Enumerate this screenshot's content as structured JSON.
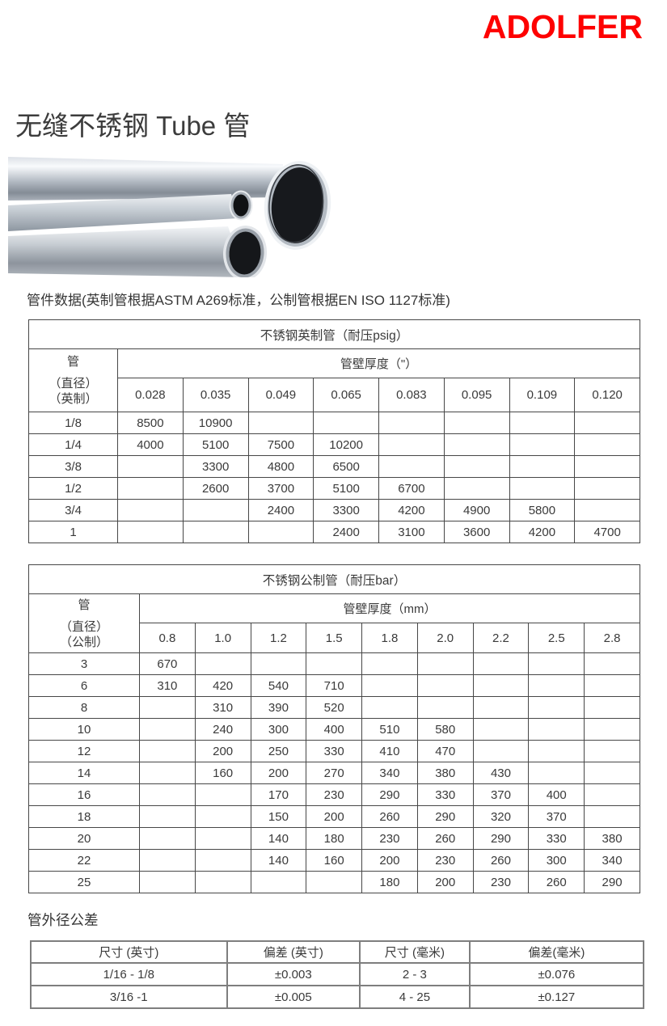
{
  "brand": {
    "logo_text": "ADOLFER",
    "logo_color": "#fe0000"
  },
  "page": {
    "title": "无缝不锈钢 Tube 管",
    "intro": "管件数据(英制管根据ASTM A269标准，公制管根据EN ISO 1127标准)",
    "photo_alt": "stainless-steel-tubes-photo"
  },
  "imperial_table": {
    "title": "不锈钢英制管（耐压psig）",
    "corner_lines": [
      "管",
      "（直径）",
      "（英制）"
    ],
    "thickness_header": "管壁厚度（\"）",
    "thicknesses": [
      "0.028",
      "0.035",
      "0.049",
      "0.065",
      "0.083",
      "0.095",
      "0.109",
      "0.120"
    ],
    "rows": [
      {
        "size": "1/8",
        "values": [
          "8500",
          "10900",
          "",
          "",
          "",
          "",
          "",
          ""
        ]
      },
      {
        "size": "1/4",
        "values": [
          "4000",
          "5100",
          "7500",
          "10200",
          "",
          "",
          "",
          ""
        ]
      },
      {
        "size": "3/8",
        "values": [
          "",
          "3300",
          "4800",
          "6500",
          "",
          "",
          "",
          ""
        ]
      },
      {
        "size": "1/2",
        "values": [
          "",
          "2600",
          "3700",
          "5100",
          "6700",
          "",
          "",
          ""
        ]
      },
      {
        "size": "3/4",
        "values": [
          "",
          "",
          "2400",
          "3300",
          "4200",
          "4900",
          "5800",
          ""
        ]
      },
      {
        "size": "1",
        "values": [
          "",
          "",
          "",
          "2400",
          "3100",
          "3600",
          "4200",
          "4700"
        ]
      }
    ]
  },
  "metric_table": {
    "title": "不锈钢公制管（耐压bar）",
    "corner_lines": [
      "管",
      "（直径）",
      "（公制）"
    ],
    "thickness_header": "管壁厚度（mm）",
    "thicknesses": [
      "0.8",
      "1.0",
      "1.2",
      "1.5",
      "1.8",
      "2.0",
      "2.2",
      "2.5",
      "2.8"
    ],
    "rows": [
      {
        "size": "3",
        "values": [
          "670",
          "",
          "",
          "",
          "",
          "",
          "",
          "",
          ""
        ]
      },
      {
        "size": "6",
        "values": [
          "310",
          "420",
          "540",
          "710",
          "",
          "",
          "",
          "",
          ""
        ]
      },
      {
        "size": "8",
        "values": [
          "",
          "310",
          "390",
          "520",
          "",
          "",
          "",
          "",
          ""
        ]
      },
      {
        "size": "10",
        "values": [
          "",
          "240",
          "300",
          "400",
          "510",
          "580",
          "",
          "",
          ""
        ]
      },
      {
        "size": "12",
        "values": [
          "",
          "200",
          "250",
          "330",
          "410",
          "470",
          "",
          "",
          ""
        ]
      },
      {
        "size": "14",
        "values": [
          "",
          "160",
          "200",
          "270",
          "340",
          "380",
          "430",
          "",
          ""
        ]
      },
      {
        "size": "16",
        "values": [
          "",
          "",
          "170",
          "230",
          "290",
          "330",
          "370",
          "400",
          ""
        ]
      },
      {
        "size": "18",
        "values": [
          "",
          "",
          "150",
          "200",
          "260",
          "290",
          "320",
          "370",
          ""
        ]
      },
      {
        "size": "20",
        "values": [
          "",
          "",
          "140",
          "180",
          "230",
          "260",
          "290",
          "330",
          "380"
        ]
      },
      {
        "size": "22",
        "values": [
          "",
          "",
          "140",
          "160",
          "200",
          "230",
          "260",
          "300",
          "340"
        ]
      },
      {
        "size": "25",
        "values": [
          "",
          "",
          "",
          "",
          "180",
          "200",
          "230",
          "260",
          "290"
        ]
      }
    ]
  },
  "tolerance": {
    "heading": "管外径公差",
    "headers": [
      "尺寸 (英寸)",
      "偏差 (英寸)",
      "尺寸 (毫米)",
      "偏差(毫米)"
    ],
    "rows": [
      [
        "1/16 - 1/8",
        "±0.003",
        "2 - 3",
        "±0.076"
      ],
      [
        "3/16 -1",
        "±0.005",
        "4 - 25",
        "±0.127"
      ]
    ]
  }
}
